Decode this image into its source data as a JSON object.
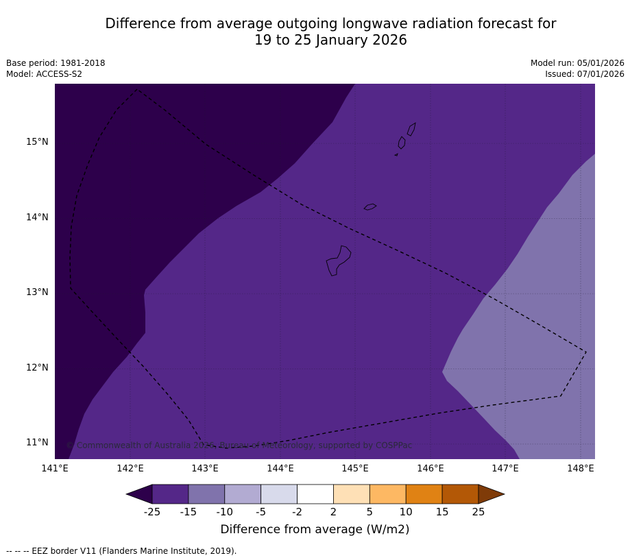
{
  "title": {
    "line1": "Difference from average outgoing longwave radiation forecast for",
    "line2": "19 to 25 January 2026"
  },
  "meta": {
    "base_period": "Base period: 1981-2018",
    "model": "Model: ACCESS-S2",
    "model_run": "Model run: 05/01/2026",
    "issued": "Issued: 07/01/2026"
  },
  "map": {
    "lat_labels": [
      "15°N",
      "14°N",
      "13°N",
      "12°N",
      "11°N"
    ],
    "lon_labels": [
      "141°E",
      "142°E",
      "143°E",
      "144°E",
      "145°E",
      "146°E",
      "147°E",
      "148°E"
    ],
    "copyright": "© Commonwealth of Australia 2026, Bureau of Meteorology, supported by COSPPac",
    "colors": {
      "minus25": "#2d004b",
      "minus15": "#542788",
      "minus10": "#8073ac",
      "minus5": "#b2abd2",
      "minus2": "#d8daeb",
      "zero": "#ffffff",
      "plus2": "#fee0b6",
      "plus5": "#fdb863",
      "plus10": "#e08214",
      "plus15": "#b35806",
      "plus25": "#7f3b08"
    }
  },
  "colorbar": {
    "ticks": [
      "-25",
      "-15",
      "-10",
      "-5",
      "-2",
      "2",
      "5",
      "10",
      "15",
      "25"
    ],
    "title": "Difference from average (W/m2)"
  },
  "footer": {
    "eez_note": "--  --  -- EEZ border V11 (Flanders Marine Institute, 2019)."
  }
}
